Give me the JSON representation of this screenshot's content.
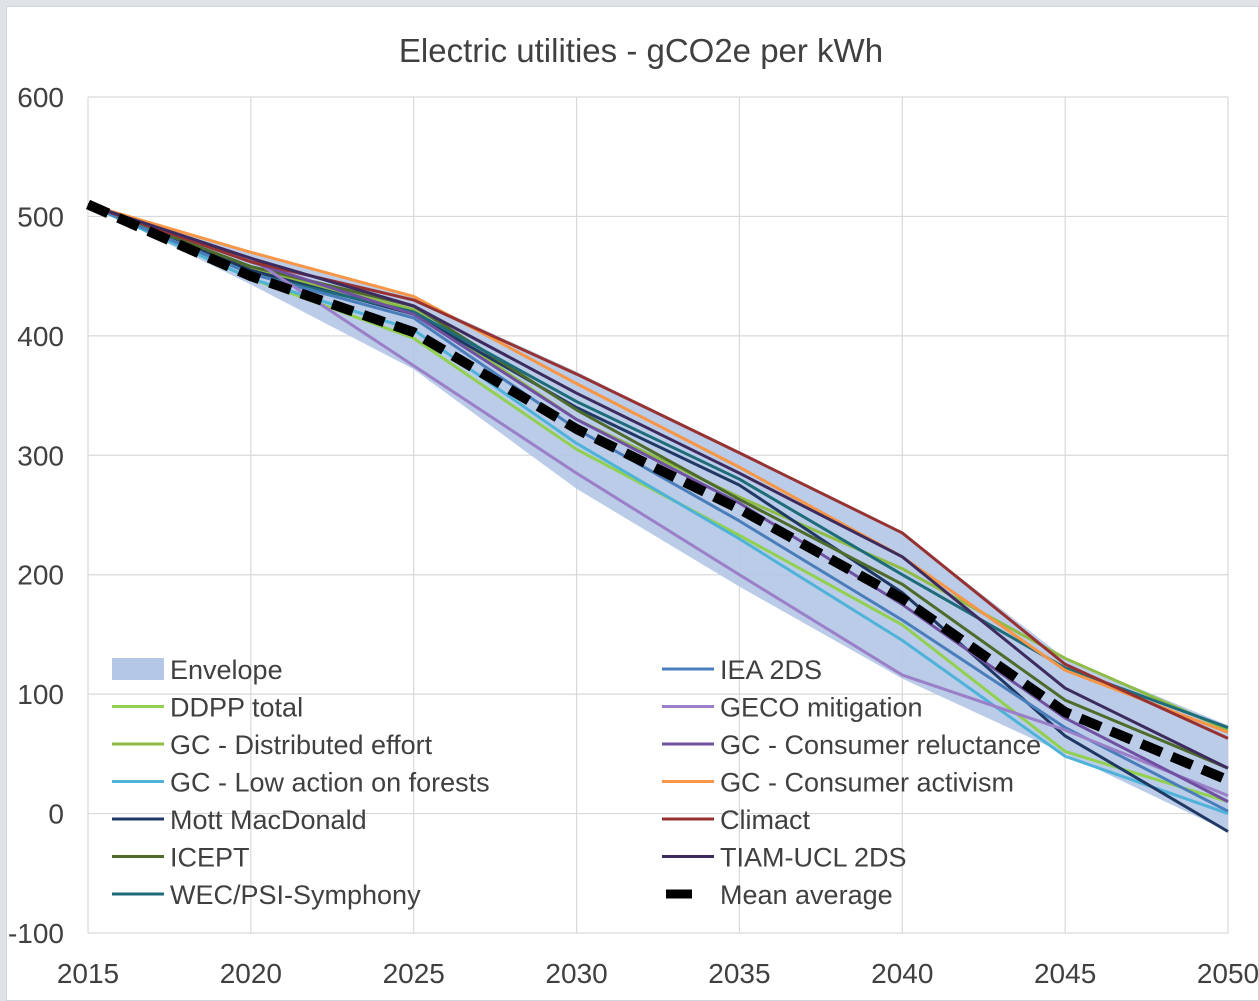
{
  "chart_data": {
    "type": "line",
    "title": "Electric utilities - gCO2e per kWh",
    "xlabel": "",
    "ylabel": "",
    "x": [
      2015,
      2020,
      2025,
      2030,
      2035,
      2040,
      2045,
      2050
    ],
    "x_ticks": [
      "2015",
      "2020",
      "2025",
      "2030",
      "2035",
      "2040",
      "2045",
      "2050"
    ],
    "y_ticks": [
      "600",
      "500",
      "400",
      "300",
      "200",
      "100",
      "0",
      "-100"
    ],
    "ylim": [
      -100,
      600
    ],
    "xlim": [
      2015,
      2050
    ],
    "grid": "horizontal and vertical",
    "legend_position": "bottom-left, two columns",
    "envelope": {
      "name": "Envelope",
      "color": "#b4c7e7",
      "upper": [
        510,
        470,
        432,
        370,
        302,
        235,
        130,
        74
      ],
      "lower": [
        510,
        443,
        372,
        272,
        190,
        113,
        50,
        -15
      ]
    },
    "series": [
      {
        "name": "DDPP total",
        "color": "#92d050",
        "values": [
          510,
          448,
          398,
          305,
          233,
          158,
          52,
          10
        ]
      },
      {
        "name": "GC - Distributed effort",
        "color": "#8fbc45",
        "values": [
          510,
          456,
          422,
          330,
          265,
          205,
          130,
          70
        ]
      },
      {
        "name": "GC - Low action on forests",
        "color": "#4fb3d9",
        "values": [
          510,
          448,
          405,
          310,
          230,
          145,
          48,
          0
        ]
      },
      {
        "name": "Mott MacDonald",
        "color": "#1f3864",
        "values": [
          510,
          455,
          418,
          340,
          275,
          185,
          65,
          -15
        ]
      },
      {
        "name": "ICEPT",
        "color": "#4e6b2c",
        "values": [
          510,
          458,
          425,
          338,
          263,
          192,
          95,
          38
        ]
      },
      {
        "name": "WEC/PSI-Symphony",
        "color": "#1e6b7a",
        "values": [
          510,
          452,
          420,
          345,
          280,
          200,
          122,
          72
        ]
      },
      {
        "name": "IEA 2DS",
        "color": "#4a7ebb",
        "values": [
          510,
          452,
          415,
          322,
          245,
          162,
          72,
          2
        ]
      },
      {
        "name": "GECO mitigation",
        "color": "#9b7fc8",
        "values": [
          510,
          465,
          375,
          285,
          200,
          116,
          70,
          15
        ]
      },
      {
        "name": "GC - Consumer reluctance",
        "color": "#7050a0",
        "values": [
          510,
          462,
          418,
          330,
          260,
          175,
          80,
          10
        ]
      },
      {
        "name": "GC - Consumer activism",
        "color": "#f79646",
        "values": [
          510,
          470,
          433,
          360,
          290,
          215,
          120,
          68
        ]
      },
      {
        "name": "Climact",
        "color": "#963232",
        "values": [
          510,
          462,
          430,
          368,
          302,
          235,
          125,
          63
        ]
      },
      {
        "name": "TIAM-UCL 2DS",
        "color": "#3d2b5e",
        "values": [
          510,
          465,
          425,
          352,
          285,
          215,
          105,
          38
        ]
      },
      {
        "name": "Mean average",
        "color": "#000000",
        "dashed": true,
        "values": [
          510,
          450,
          403,
          322,
          255,
          180,
          85,
          28
        ]
      }
    ]
  }
}
